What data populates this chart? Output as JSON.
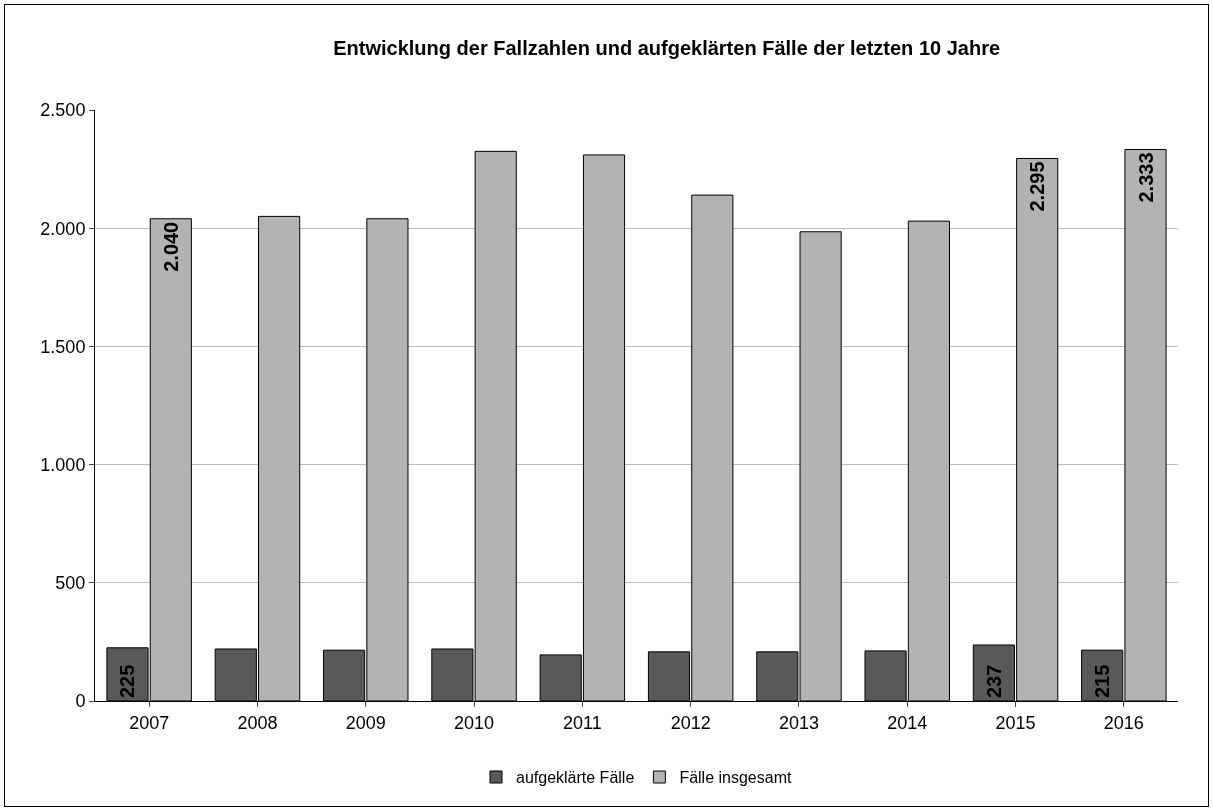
{
  "chart_data": {
    "type": "bar",
    "title": "Entwicklung der Fallzahlen und aufgeklärten Fälle der letzten 10 Jahre",
    "categories": [
      "2007",
      "2008",
      "2009",
      "2010",
      "2011",
      "2012",
      "2013",
      "2014",
      "2015",
      "2016"
    ],
    "series": [
      {
        "name": "aufgeklärte Fälle",
        "color": "#595959",
        "values": [
          225,
          220,
          215,
          220,
          195,
          208,
          208,
          212,
          237,
          215
        ],
        "value_labels": [
          "225",
          null,
          null,
          null,
          null,
          null,
          null,
          null,
          "237",
          "215"
        ]
      },
      {
        "name": "Fälle insgesamt",
        "color": "#b3b3b3",
        "values": [
          2040,
          2050,
          2040,
          2325,
          2310,
          2140,
          1985,
          2030,
          2295,
          2333
        ],
        "value_labels": [
          "2.040",
          null,
          null,
          null,
          null,
          null,
          null,
          null,
          "2.295",
          "2.333"
        ]
      }
    ],
    "ylim": [
      0,
      2500
    ],
    "yticks": [
      {
        "value": 0,
        "label": "0"
      },
      {
        "value": 500,
        "label": "500"
      },
      {
        "value": 1000,
        "label": "1.000"
      },
      {
        "value": 1500,
        "label": "1.500"
      },
      {
        "value": 2000,
        "label": "2.000"
      },
      {
        "value": 2500,
        "label": "2.500"
      }
    ],
    "grid": "y",
    "legend": "bottom"
  }
}
